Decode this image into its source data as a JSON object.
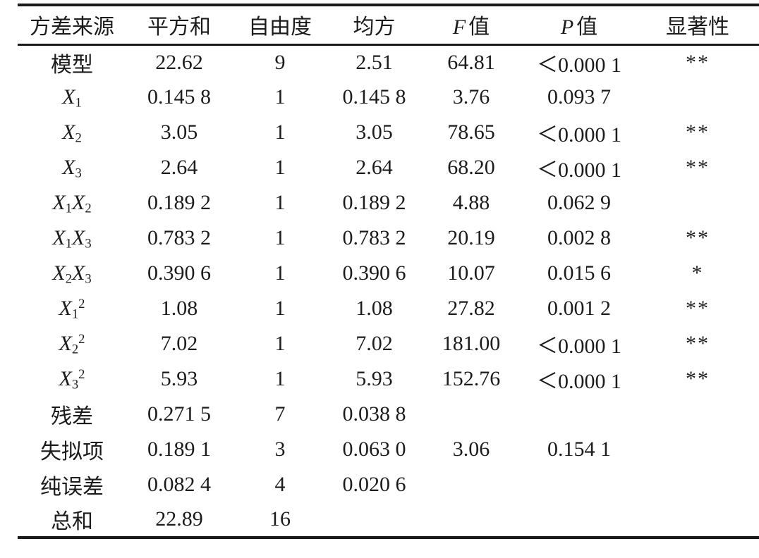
{
  "table": {
    "kind": "anova-three-line-table",
    "colors": {
      "text": "#1c1c1c",
      "rule": "#1a1a1a",
      "background": "#ffffff"
    },
    "headers": [
      [
        [
          "方差来源",
          "n"
        ]
      ],
      [
        [
          "平方和",
          "n"
        ]
      ],
      [
        [
          "自由度",
          "n"
        ]
      ],
      [
        [
          "均方",
          "n"
        ]
      ],
      [
        [
          "F",
          "i"
        ],
        [
          "值",
          "n"
        ]
      ],
      [
        [
          "P",
          "i"
        ],
        [
          "值",
          "n"
        ]
      ],
      [
        [
          "显著性",
          "n"
        ]
      ]
    ],
    "rows": [
      {
        "label": [
          [
            "模型",
            "n"
          ]
        ],
        "cells": [
          "22.62",
          "9",
          "2.51",
          "64.81",
          "＜0.000 1",
          "**"
        ]
      },
      {
        "label": [
          [
            "X",
            "i"
          ],
          [
            "1",
            "sub"
          ]
        ],
        "cells": [
          "0.145 8",
          "1",
          "0.145 8",
          "3.76",
          "0.093 7",
          ""
        ]
      },
      {
        "label": [
          [
            "X",
            "i"
          ],
          [
            "2",
            "sub"
          ]
        ],
        "cells": [
          "3.05",
          "1",
          "3.05",
          "78.65",
          "＜0.000 1",
          "**"
        ]
      },
      {
        "label": [
          [
            "X",
            "i"
          ],
          [
            "3",
            "sub"
          ]
        ],
        "cells": [
          "2.64",
          "1",
          "2.64",
          "68.20",
          "＜0.000 1",
          "**"
        ]
      },
      {
        "label": [
          [
            "X",
            "i"
          ],
          [
            "1",
            "sub"
          ],
          [
            "X",
            "i"
          ],
          [
            "2",
            "sub"
          ]
        ],
        "cells": [
          "0.189 2",
          "1",
          "0.189 2",
          "4.88",
          "0.062 9",
          ""
        ]
      },
      {
        "label": [
          [
            "X",
            "i"
          ],
          [
            "1",
            "sub"
          ],
          [
            "X",
            "i"
          ],
          [
            "3",
            "sub"
          ]
        ],
        "cells": [
          "0.783 2",
          "1",
          "0.783 2",
          "20.19",
          "0.002 8",
          "**"
        ]
      },
      {
        "label": [
          [
            "X",
            "i"
          ],
          [
            "2",
            "sub"
          ],
          [
            "X",
            "i"
          ],
          [
            "3",
            "sub"
          ]
        ],
        "cells": [
          "0.390 6",
          "1",
          "0.390 6",
          "10.07",
          "0.015 6",
          "*"
        ]
      },
      {
        "label": [
          [
            "X",
            "i"
          ],
          [
            "1",
            "sub"
          ],
          [
            "2",
            "sup"
          ]
        ],
        "cells": [
          "1.08",
          "1",
          "1.08",
          "27.82",
          "0.001 2",
          "**"
        ]
      },
      {
        "label": [
          [
            "X",
            "i"
          ],
          [
            "2",
            "sub"
          ],
          [
            "2",
            "sup"
          ]
        ],
        "cells": [
          "7.02",
          "1",
          "7.02",
          "181.00",
          "＜0.000 1",
          "**"
        ]
      },
      {
        "label": [
          [
            "X",
            "i"
          ],
          [
            "3",
            "sub"
          ],
          [
            "2",
            "sup"
          ]
        ],
        "cells": [
          "5.93",
          "1",
          "5.93",
          "152.76",
          "＜0.000 1",
          "**"
        ]
      },
      {
        "label": [
          [
            "残差",
            "n"
          ]
        ],
        "cells": [
          "0.271 5",
          "7",
          "0.038 8",
          "",
          "",
          ""
        ]
      },
      {
        "label": [
          [
            "失拟项",
            "n"
          ]
        ],
        "cells": [
          "0.189 1",
          "3",
          "0.063 0",
          "3.06",
          "0.154 1",
          ""
        ]
      },
      {
        "label": [
          [
            "纯误差",
            "n"
          ]
        ],
        "cells": [
          "0.082 4",
          "4",
          "0.020 6",
          "",
          "",
          ""
        ]
      },
      {
        "label": [
          [
            "总和",
            "n"
          ]
        ],
        "cells": [
          "22.89",
          "16",
          "",
          "",
          "",
          ""
        ]
      }
    ]
  }
}
